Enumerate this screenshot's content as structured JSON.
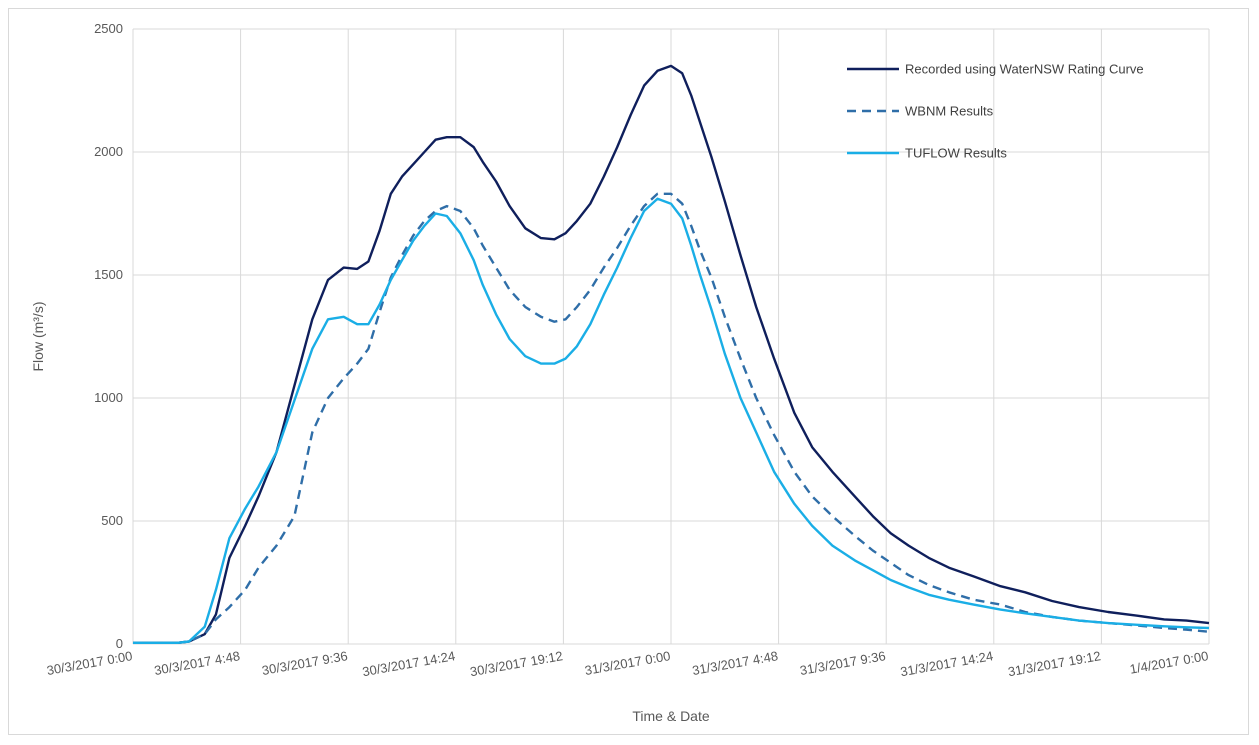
{
  "chart_data": {
    "type": "line",
    "title": "",
    "xlabel": "Time & Date",
    "ylabel": "Flow (m³/s)",
    "x_unit": "hours from 30/3/2017 0:00",
    "xlim": [
      0,
      48
    ],
    "ylim": [
      0,
      2500
    ],
    "y_ticks": [
      0,
      500,
      1000,
      1500,
      2000,
      2500
    ],
    "x_tick_labels": [
      "30/3/2017 0:00",
      "30/3/2017 4:48",
      "30/3/2017 9:36",
      "30/3/2017 14:24",
      "30/3/2017 19:12",
      "31/3/2017 0:00",
      "31/3/2017 4:48",
      "31/3/2017 9:36",
      "31/3/2017 14:24",
      "31/3/2017 19:12",
      "1/4/2017 0:00"
    ],
    "x_tick_values": [
      0,
      4.8,
      9.6,
      14.4,
      19.2,
      24,
      28.8,
      33.6,
      38.4,
      43.2,
      48
    ],
    "grid": true,
    "legend_position": "top-right",
    "series": [
      {
        "name": "Recorded using WaterNSW Rating Curve",
        "color": "#0f1f5c",
        "dash": "solid",
        "x": [
          0,
          1,
          2,
          2.5,
          3.2,
          3.7,
          4.3,
          5.0,
          5.6,
          6.4,
          7.2,
          8.0,
          8.7,
          9.4,
          10.0,
          10.5,
          11.0,
          11.5,
          12.0,
          12.5,
          13.0,
          13.5,
          14.0,
          14.6,
          15.2,
          15.6,
          16.2,
          16.8,
          17.5,
          18.2,
          18.8,
          19.3,
          19.8,
          20.4,
          21.0,
          21.6,
          22.2,
          22.8,
          23.4,
          24.0,
          24.5,
          24.9,
          25.3,
          25.8,
          26.4,
          27.1,
          27.8,
          28.6,
          29.5,
          30.3,
          31.2,
          32.2,
          33.0,
          33.8,
          34.6,
          35.5,
          36.4,
          37.5,
          38.7,
          39.8,
          41.0,
          42.2,
          43.5,
          44.8,
          46.0,
          47.0,
          48.0
        ],
        "y": [
          5,
          5,
          5,
          10,
          40,
          120,
          350,
          480,
          600,
          780,
          1050,
          1320,
          1480,
          1530,
          1525,
          1555,
          1680,
          1830,
          1900,
          1950,
          2000,
          2050,
          2060,
          2060,
          2020,
          1960,
          1880,
          1780,
          1690,
          1650,
          1645,
          1670,
          1720,
          1790,
          1900,
          2020,
          2150,
          2270,
          2330,
          2350,
          2320,
          2230,
          2120,
          1980,
          1800,
          1580,
          1370,
          1160,
          940,
          800,
          700,
          600,
          520,
          450,
          400,
          350,
          310,
          275,
          235,
          210,
          175,
          150,
          130,
          115,
          100,
          95,
          85
        ]
      },
      {
        "name": "WBNM Results",
        "color": "#2f6ea8",
        "dash": "dashed",
        "x": [
          0,
          1,
          2,
          2.5,
          3.2,
          3.7,
          4.3,
          5.0,
          5.6,
          6.4,
          7.2,
          8.0,
          8.7,
          9.4,
          10.0,
          10.5,
          11.0,
          11.5,
          12.0,
          12.5,
          13.0,
          13.5,
          14.0,
          14.6,
          15.2,
          15.6,
          16.2,
          16.8,
          17.5,
          18.2,
          18.8,
          19.3,
          19.8,
          20.4,
          21.0,
          21.6,
          22.2,
          22.8,
          23.4,
          24.0,
          24.5,
          24.9,
          25.3,
          25.8,
          26.4,
          27.1,
          27.8,
          28.6,
          29.5,
          30.3,
          31.2,
          32.2,
          33.0,
          33.8,
          34.6,
          35.5,
          36.4,
          37.5,
          38.7,
          39.8,
          41.0,
          42.2,
          43.5,
          44.8,
          46.0,
          47.0,
          48.0
        ],
        "y": [
          5,
          5,
          5,
          10,
          40,
          100,
          150,
          220,
          310,
          400,
          520,
          860,
          1000,
          1080,
          1140,
          1200,
          1350,
          1490,
          1580,
          1660,
          1720,
          1760,
          1780,
          1760,
          1690,
          1620,
          1530,
          1440,
          1370,
          1330,
          1310,
          1320,
          1370,
          1440,
          1530,
          1610,
          1700,
          1780,
          1830,
          1830,
          1790,
          1700,
          1600,
          1490,
          1330,
          1160,
          1000,
          850,
          700,
          600,
          520,
          440,
          380,
          330,
          280,
          240,
          210,
          180,
          160,
          130,
          110,
          95,
          85,
          75,
          65,
          58,
          50
        ]
      },
      {
        "name": "TUFLOW Results",
        "color": "#1aaee6",
        "dash": "solid",
        "x": [
          0,
          1,
          2,
          2.5,
          3.2,
          3.7,
          4.3,
          5.0,
          5.6,
          6.4,
          7.2,
          8.0,
          8.7,
          9.4,
          10.0,
          10.5,
          11.0,
          11.5,
          12.0,
          12.5,
          13.0,
          13.5,
          14.0,
          14.6,
          15.2,
          15.6,
          16.2,
          16.8,
          17.5,
          18.2,
          18.8,
          19.3,
          19.8,
          20.4,
          21.0,
          21.6,
          22.2,
          22.8,
          23.4,
          24.0,
          24.5,
          24.9,
          25.3,
          25.8,
          26.4,
          27.1,
          27.8,
          28.6,
          29.5,
          30.3,
          31.2,
          32.2,
          33.0,
          33.8,
          34.6,
          35.5,
          36.4,
          37.5,
          38.7,
          39.8,
          41.0,
          42.2,
          43.5,
          44.8,
          46.0,
          47.0,
          48.0
        ],
        "y": [
          5,
          5,
          5,
          10,
          70,
          220,
          430,
          550,
          640,
          780,
          990,
          1200,
          1320,
          1330,
          1300,
          1300,
          1380,
          1480,
          1560,
          1640,
          1700,
          1750,
          1740,
          1670,
          1560,
          1460,
          1340,
          1240,
          1170,
          1140,
          1140,
          1160,
          1210,
          1300,
          1420,
          1530,
          1650,
          1760,
          1810,
          1790,
          1730,
          1620,
          1500,
          1360,
          1180,
          1000,
          860,
          700,
          570,
          480,
          400,
          340,
          300,
          260,
          230,
          200,
          180,
          160,
          140,
          125,
          110,
          95,
          85,
          78,
          72,
          68,
          65
        ]
      }
    ]
  }
}
